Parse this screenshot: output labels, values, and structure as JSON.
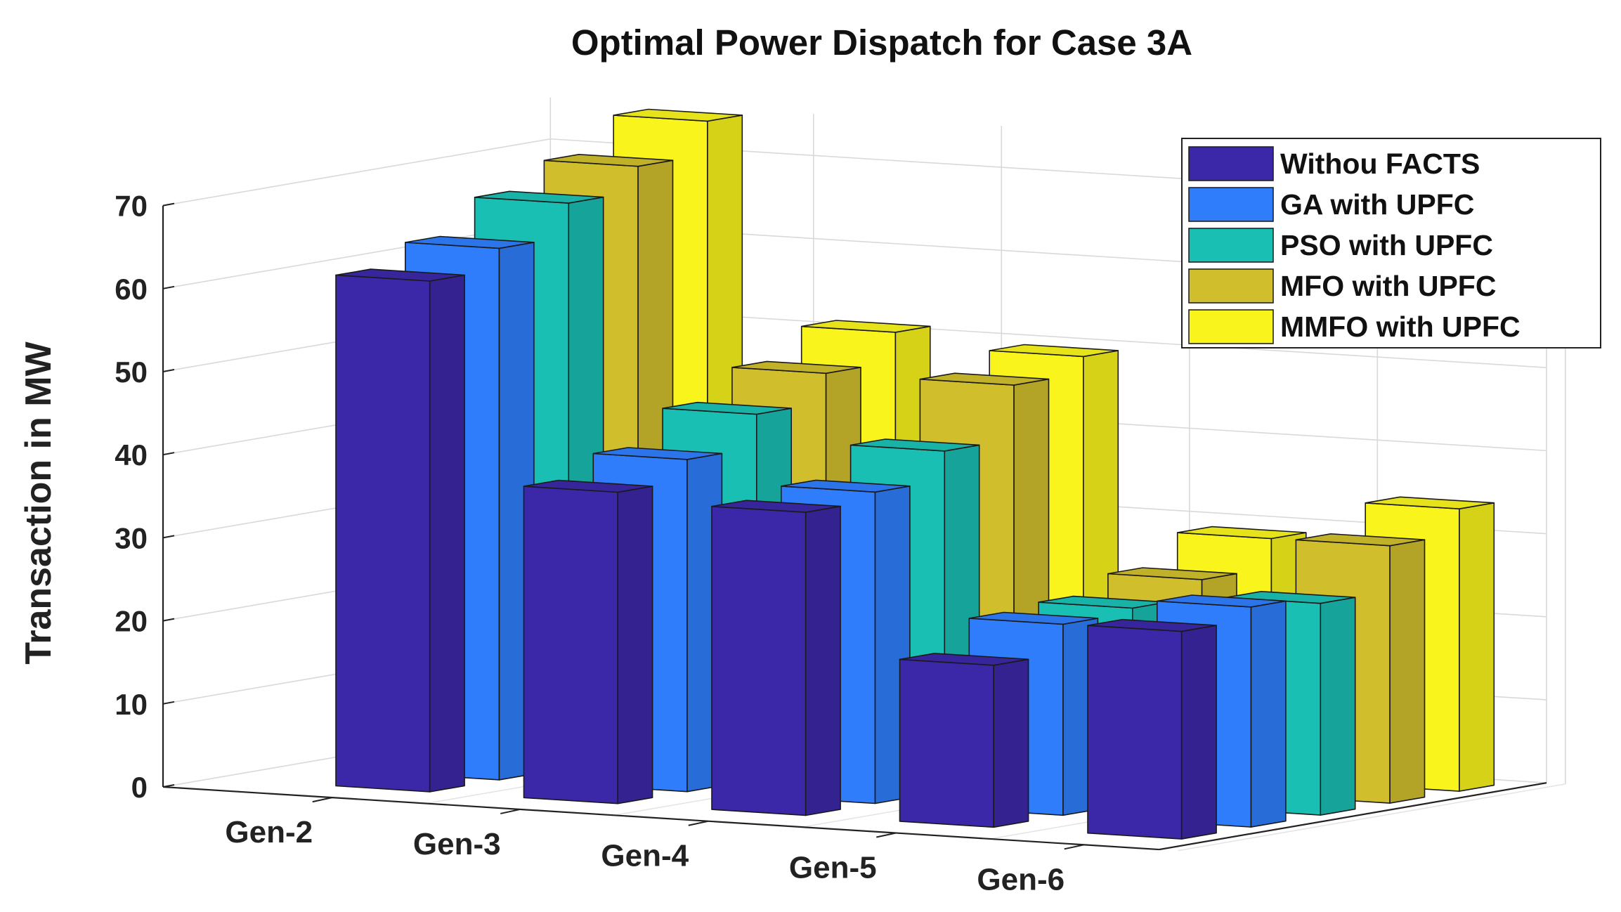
{
  "chart_data": {
    "type": "bar",
    "style": "3d-grouped",
    "title": "Optimal Power Dispatch for Case 3A",
    "xlabel": "",
    "ylabel": "Transaction in MW",
    "ylim": [
      0,
      70
    ],
    "yticks": [
      0,
      10,
      20,
      30,
      40,
      50,
      60,
      70
    ],
    "grid": true,
    "legend_position": "top-right",
    "categories": [
      "Gen-2",
      "Gen-3",
      "Gen-4",
      "Gen-5",
      "Gen-6"
    ],
    "series": [
      {
        "name": "Withou FACTS",
        "color": "#3B28A8",
        "values": [
          61.5,
          37.5,
          36.5,
          19.5,
          25
        ]
      },
      {
        "name": "GA with UPFC",
        "color": "#2F7DFB",
        "values": [
          64,
          40,
          37.5,
          23,
          26.5
        ]
      },
      {
        "name": "PSO with UPFC",
        "color": "#1ABFB3",
        "values": [
          68,
          44,
          41,
          23.5,
          25.5
        ]
      },
      {
        "name": "MFO with UPFC",
        "color": "#D0BE2C",
        "values": [
          71,
          47.5,
          47.5,
          25.5,
          31
        ]
      },
      {
        "name": "MMFO with UPFC",
        "color": "#F8F41C",
        "values": [
          75,
          51,
          49.5,
          29,
          34
        ]
      }
    ]
  }
}
